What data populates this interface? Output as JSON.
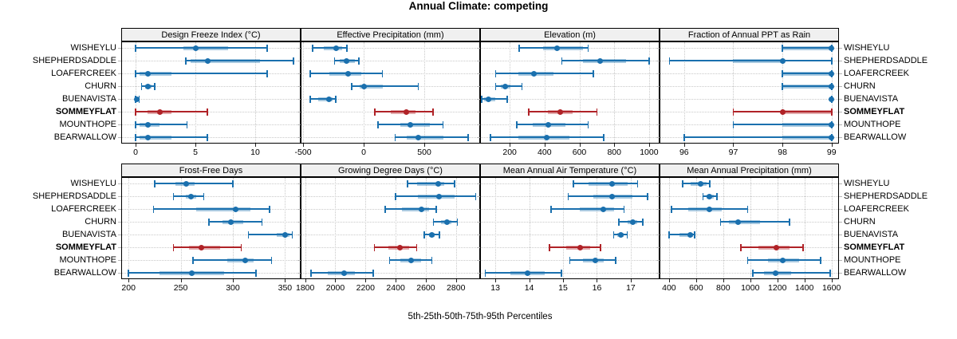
{
  "title": "Annual Climate: competing",
  "xlabel": "5th-25th-50th-75th-95th Percentiles",
  "colors": {
    "site": "#1a70ae",
    "highlight": "#b02227",
    "strip_bg": "#f0f0f0",
    "grid": "#c9c9c9",
    "panel_border": "#000000"
  },
  "sites": [
    {
      "label": "WISHEYLU",
      "highlight": false
    },
    {
      "label": "SHEPHERDSADDLE",
      "highlight": false
    },
    {
      "label": "LOAFERCREEK",
      "highlight": false
    },
    {
      "label": "CHURN",
      "highlight": false
    },
    {
      "label": "BUENAVISTA",
      "highlight": false
    },
    {
      "label": "SOMMEYFLAT",
      "highlight": true
    },
    {
      "label": "MOUNTHOPE",
      "highlight": false
    },
    {
      "label": "BEARWALLOW",
      "highlight": false
    }
  ],
  "chart_data": {
    "type": "dotplot-percentile-segments",
    "note": "values per site are [5th, 25th, 50th, 75th, 95th] percentiles; site order matches sites[]",
    "percentile_labels": [
      "5th",
      "25th",
      "50th",
      "75th",
      "95th"
    ],
    "legend_position": "none",
    "grid": "dotted",
    "panels": [
      {
        "title": "Design Freeze Index (°C)",
        "xlim": [
          -1.2,
          13.8
        ],
        "ticks": [
          0,
          5,
          10
        ],
        "series": [
          [
            0,
            4,
            5,
            7.7,
            11
          ],
          [
            4.2,
            4.6,
            6,
            10.4,
            13.2
          ],
          [
            0,
            0.3,
            1,
            3,
            11
          ],
          [
            0.5,
            0.8,
            1,
            1.3,
            1.6
          ],
          [
            0,
            0,
            0.1,
            0.2,
            0.3
          ],
          [
            0,
            1,
            2,
            3,
            6
          ],
          [
            0,
            0.3,
            1,
            2,
            4.3
          ],
          [
            0,
            0.3,
            1,
            3,
            6
          ]
        ]
      },
      {
        "title": "Effective Precipitation (mm)",
        "xlim": [
          -520,
          960
        ],
        "ticks": [
          -500,
          0,
          500
        ],
        "series": [
          [
            -420,
            -330,
            -230,
            -180,
            -140
          ],
          [
            -240,
            -195,
            -140,
            -70,
            -40
          ],
          [
            -440,
            -280,
            -130,
            -20,
            155
          ],
          [
            -100,
            -35,
            0,
            155,
            450
          ],
          [
            -440,
            -375,
            -285,
            -255,
            -230
          ],
          [
            90,
            225,
            350,
            425,
            570
          ],
          [
            120,
            300,
            385,
            545,
            655
          ],
          [
            260,
            355,
            450,
            660,
            860
          ]
        ]
      },
      {
        "title": "Elevation (m)",
        "xlim": [
          30,
          1060
        ],
        "ticks": [
          200,
          400,
          600,
          800,
          1000
        ],
        "series": [
          [
            255,
            390,
            470,
            620,
            650
          ],
          [
            500,
            620,
            720,
            870,
            1000
          ],
          [
            120,
            250,
            340,
            450,
            680
          ],
          [
            120,
            150,
            175,
            205,
            270
          ],
          [
            40,
            55,
            80,
            115,
            185
          ],
          [
            310,
            420,
            490,
            560,
            700
          ],
          [
            240,
            330,
            420,
            520,
            650
          ],
          [
            90,
            250,
            410,
            545,
            740
          ]
        ]
      },
      {
        "title": "Fraction of Annual PPT as Rain",
        "xlim": [
          95.5,
          99.15
        ],
        "ticks": [
          96,
          97,
          98,
          99
        ],
        "series": [
          [
            98,
            98,
            99,
            99,
            99
          ],
          [
            95.7,
            97,
            98,
            98,
            99
          ],
          [
            98,
            98,
            99,
            99,
            99
          ],
          [
            98,
            98,
            99,
            99,
            99
          ],
          [
            99,
            99,
            99,
            99,
            99
          ],
          [
            97,
            98,
            98,
            99,
            99
          ],
          [
            97,
            98,
            99,
            99,
            99
          ],
          [
            96,
            98,
            99,
            99,
            99
          ]
        ]
      },
      {
        "title": "Frost-Free Days",
        "xlim": [
          193,
          365
        ],
        "ticks": [
          200,
          250,
          300,
          350
        ],
        "series": [
          [
            225,
            245,
            255,
            263,
            300
          ],
          [
            243,
            255,
            260,
            265,
            272
          ],
          [
            224,
            265,
            303,
            317,
            335
          ],
          [
            277,
            290,
            298,
            310,
            328
          ],
          [
            315,
            342,
            350,
            354,
            357
          ],
          [
            243,
            258,
            270,
            288,
            308
          ],
          [
            262,
            295,
            312,
            320,
            337
          ],
          [
            200,
            230,
            261,
            292,
            322
          ]
        ]
      },
      {
        "title": "Growing Degree Days (°C)",
        "xlim": [
          1770,
          2960
        ],
        "ticks": [
          1800,
          2000,
          2200,
          2400,
          2600,
          2800
        ],
        "series": [
          [
            2480,
            2540,
            2680,
            2720,
            2790
          ],
          [
            2400,
            2550,
            2690,
            2790,
            2930
          ],
          [
            2330,
            2440,
            2570,
            2620,
            2670
          ],
          [
            2650,
            2700,
            2740,
            2770,
            2810
          ],
          [
            2590,
            2620,
            2640,
            2660,
            2690
          ],
          [
            2260,
            2350,
            2430,
            2490,
            2540
          ],
          [
            2360,
            2430,
            2500,
            2570,
            2640
          ],
          [
            1840,
            1950,
            2060,
            2130,
            2250
          ]
        ]
      },
      {
        "title": "Mean Annual Air Temperature (°C)",
        "xlim": [
          12.55,
          17.85
        ],
        "ticks": [
          13,
          14,
          15,
          16,
          17
        ],
        "series": [
          [
            15.3,
            15.75,
            16.45,
            16.9,
            17.2
          ],
          [
            15.15,
            15.9,
            16.45,
            17.05,
            17.5
          ],
          [
            14.65,
            15.5,
            16.2,
            16.5,
            16.8
          ],
          [
            16.65,
            16.9,
            17.05,
            17.2,
            17.35
          ],
          [
            16.5,
            16.6,
            16.7,
            16.8,
            16.9
          ],
          [
            14.6,
            15.1,
            15.5,
            15.8,
            16.1
          ],
          [
            15.2,
            15.6,
            15.95,
            16.2,
            16.55
          ],
          [
            12.7,
            13.45,
            13.95,
            14.45,
            14.95
          ]
        ]
      },
      {
        "title": "Mean Annual Precipitation (mm)",
        "xlim": [
          330,
          1655
        ],
        "ticks": [
          400,
          600,
          800,
          1000,
          1200,
          1400,
          1600
        ],
        "series": [
          [
            500,
            560,
            635,
            680,
            700
          ],
          [
            650,
            680,
            700,
            730,
            755
          ],
          [
            420,
            540,
            700,
            790,
            980
          ],
          [
            780,
            840,
            910,
            1070,
            1290
          ],
          [
            400,
            480,
            555,
            580,
            590
          ],
          [
            930,
            1060,
            1190,
            1290,
            1390
          ],
          [
            980,
            1130,
            1240,
            1360,
            1520
          ],
          [
            1020,
            1100,
            1185,
            1300,
            1590
          ]
        ]
      }
    ]
  }
}
